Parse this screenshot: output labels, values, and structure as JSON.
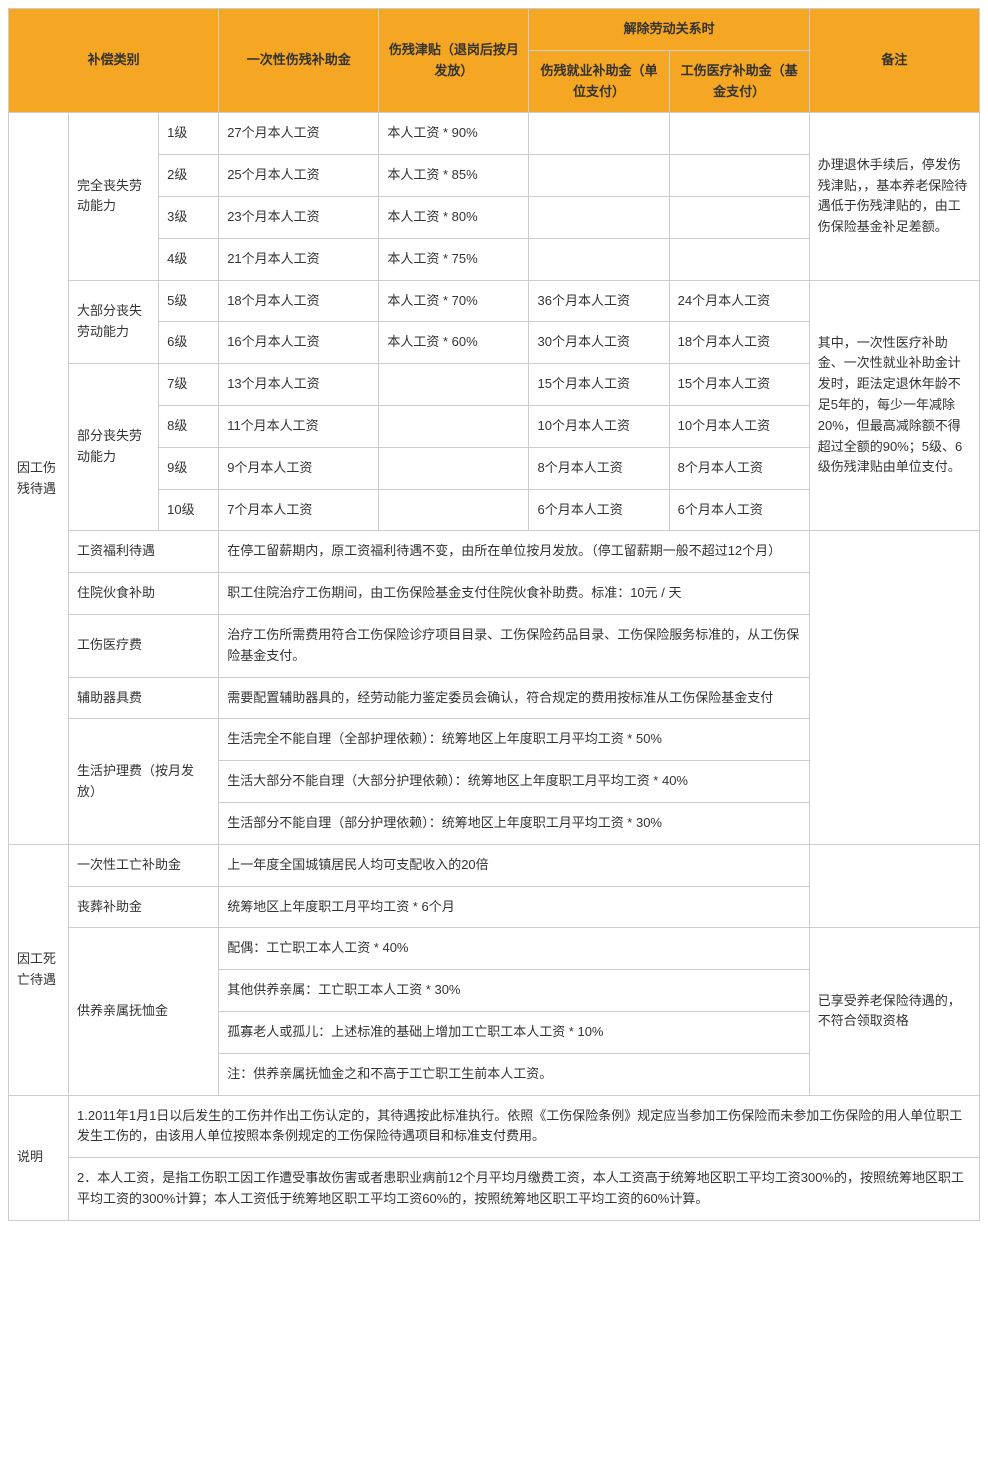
{
  "header": {
    "compCategory": "补偿类别",
    "oneTimeDisability": "一次性伤残补助金",
    "disabilityAllowance": "伤残津贴（退岗后按月发放）",
    "terminateRelation": "解除劳动关系时",
    "empPaid": "伤残就业补助金（单位支付）",
    "fundPaid": "工伤医疗补助金（基金支付）",
    "remark": "备注"
  },
  "group1": {
    "mainCat": "因工伤残待遇",
    "full": {
      "label": "完全丧失劳动能力",
      "rows": [
        {
          "lvl": "1级",
          "one": "27个月本人工资",
          "allow": "本人工资 * 90%",
          "emp": "",
          "fund": ""
        },
        {
          "lvl": "2级",
          "one": "25个月本人工资",
          "allow": "本人工资 * 85%",
          "emp": "",
          "fund": ""
        },
        {
          "lvl": "3级",
          "one": "23个月本人工资",
          "allow": "本人工资 * 80%",
          "emp": "",
          "fund": ""
        },
        {
          "lvl": "4级",
          "one": "21个月本人工资",
          "allow": "本人工资 * 75%",
          "emp": "",
          "fund": ""
        }
      ],
      "remark": "办理退休手续后，停发伤残津贴，，基本养老保险待遇低于伤残津贴的，由工伤保险基金补足差额。"
    },
    "most": {
      "label": "大部分丧失劳动能力",
      "rows": [
        {
          "lvl": "5级",
          "one": "18个月本人工资",
          "allow": "本人工资 * 70%",
          "emp": "36个月本人工资",
          "fund": "24个月本人工资"
        },
        {
          "lvl": "6级",
          "one": "16个月本人工资",
          "allow": "本人工资 * 60%",
          "emp": "30个月本人工资",
          "fund": "18个月本人工资"
        }
      ]
    },
    "partial": {
      "label": "部分丧失劳动能力",
      "rows": [
        {
          "lvl": "7级",
          "one": "13个月本人工资",
          "allow": "",
          "emp": "15个月本人工资",
          "fund": "15个月本人工资"
        },
        {
          "lvl": "8级",
          "one": "11个月本人工资",
          "allow": "",
          "emp": "10个月本人工资",
          "fund": "10个月本人工资"
        },
        {
          "lvl": "9级",
          "one": "9个月本人工资",
          "allow": "",
          "emp": "8个月本人工资",
          "fund": "8个月本人工资"
        },
        {
          "lvl": "10级",
          "one": "7个月本人工资",
          "allow": "",
          "emp": "6个月本人工资",
          "fund": "6个月本人工资"
        }
      ],
      "remark": "其中，一次性医疗补助金、一次性就业补助金计发时，距法定退休年龄不足5年的，每少一年减除20%，但最高减除额不得超过全额的90%；5级、6级伤残津贴由单位支付。"
    },
    "extra": [
      {
        "label": "工资福利待遇",
        "text": "在停工留薪期内，原工资福利待遇不变，由所在单位按月发放。（停工留薪期一般不超过12个月）"
      },
      {
        "label": "住院伙食补助",
        "text": "职工住院治疗工伤期间，由工伤保险基金支付住院伙食补助费。标准：10元 / 天"
      },
      {
        "label": "工伤医疗费",
        "text": "治疗工伤所需费用符合工伤保险诊疗项目目录、工伤保险药品目录、工伤保险服务标准的，从工伤保险基金支付。"
      },
      {
        "label": "辅助器具费",
        "text": "需要配置辅助器具的，经劳动能力鉴定委员会确认，符合规定的费用按标准从工伤保险基金支付"
      }
    ],
    "care": {
      "label": "生活护理费（按月发放）",
      "rows": [
        "生活完全不能自理（全部护理依赖）：统筹地区上年度职工月平均工资 * 50%",
        "生活大部分不能自理（大部分护理依赖）：统筹地区上年度职工月平均工资 * 40%",
        "生活部分不能自理（部分护理依赖）：统筹地区上年度职工月平均工资 * 30%"
      ]
    }
  },
  "group2": {
    "mainCat": "因工死亡待遇",
    "rows": [
      {
        "label": "一次性工亡补助金",
        "text": "上一年度全国城镇居民人均可支配收入的20倍"
      },
      {
        "label": "丧葬补助金",
        "text": "统筹地区上年度职工月平均工资 * 6个月"
      }
    ],
    "dep": {
      "label": "供养亲属抚恤金",
      "rows": [
        "配偶：工亡职工本人工资 * 40%",
        "其他供养亲属：工亡职工本人工资 * 30%",
        "孤寡老人或孤儿：上述标准的基础上增加工亡职工本人工资 * 10%",
        "注：供养亲属抚恤金之和不高于工亡职工生前本人工资。"
      ],
      "remark": "已享受养老保险待遇的，不符合领取资格"
    }
  },
  "notes": {
    "label": "说明",
    "n1": "1.2011年1月1日以后发生的工伤并作出工伤认定的，其待遇按此标准执行。依照《工伤保险条例》规定应当参加工伤保险而未参加工伤保险的用人单位职工发生工伤的，由该用人单位按照本条例规定的工伤保险待遇项目和标准支付费用。",
    "n2": "2．本人工资，是指工伤职工因工作遭受事故伤害或者患职业病前12个月平均月缴费工资，本人工资高于统筹地区职工平均工资300%的，按照统筹地区职工平均工资的300%计算；本人工资低于统筹地区职工平均工资60%的，按照统筹地区职工平均工资的60%计算。"
  }
}
